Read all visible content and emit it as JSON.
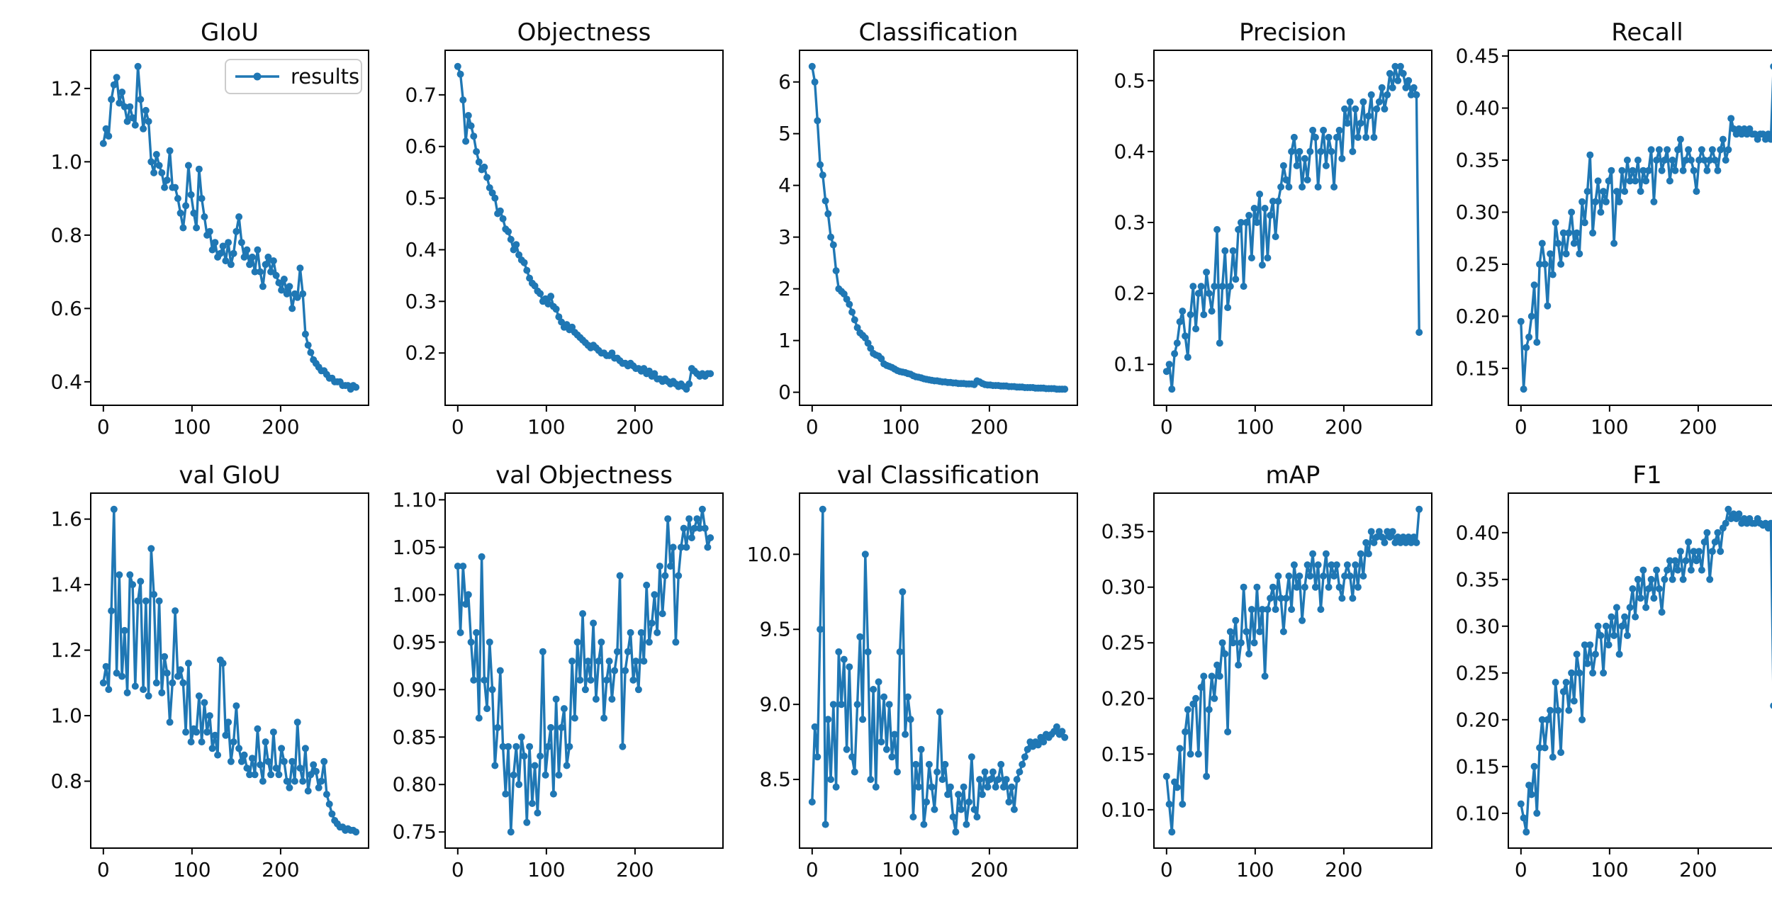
{
  "figure": {
    "kind": "matplotlib-training-results",
    "line_color": "#1f77b4",
    "spine_color": "#000000",
    "text_color": "#0d0d0d",
    "background": "#ffffff",
    "legend": {
      "label": "results",
      "shown_on_chart": "GIoU"
    }
  },
  "chart_data": [
    {
      "type": "line",
      "title": "GIoU",
      "legend": true,
      "series_name": "results",
      "x_start": 0,
      "x_step": 3,
      "x_ticks": [
        0,
        100,
        200
      ],
      "y_ticks": [
        0.4,
        0.6,
        0.8,
        1.0,
        1.2
      ],
      "y_tick_labels": [
        "0.4",
        "0.6",
        "0.8",
        "1.0",
        "1.2"
      ],
      "values": [
        1.05,
        1.09,
        1.07,
        1.17,
        1.21,
        1.23,
        1.16,
        1.19,
        1.15,
        1.11,
        1.15,
        1.12,
        1.1,
        1.26,
        1.17,
        1.09,
        1.14,
        1.11,
        1.0,
        0.97,
        1.02,
        0.99,
        0.97,
        0.93,
        0.95,
        1.03,
        0.93,
        0.93,
        0.9,
        0.86,
        0.82,
        0.88,
        0.99,
        0.91,
        0.86,
        0.82,
        0.98,
        0.9,
        0.85,
        0.8,
        0.81,
        0.76,
        0.78,
        0.74,
        0.75,
        0.77,
        0.73,
        0.78,
        0.72,
        0.75,
        0.81,
        0.85,
        0.78,
        0.74,
        0.76,
        0.72,
        0.74,
        0.7,
        0.76,
        0.7,
        0.66,
        0.72,
        0.74,
        0.7,
        0.73,
        0.69,
        0.67,
        0.65,
        0.68,
        0.64,
        0.66,
        0.6,
        0.64,
        0.63,
        0.71,
        0.64,
        0.53,
        0.5,
        0.48,
        0.46,
        0.45,
        0.44,
        0.43,
        0.43,
        0.42,
        0.41,
        0.41,
        0.4,
        0.4,
        0.4,
        0.39,
        0.39,
        0.39,
        0.38,
        0.39,
        0.385
      ]
    },
    {
      "type": "line",
      "title": "Objectness",
      "legend": false,
      "series_name": "results",
      "x_start": 0,
      "x_step": 3,
      "x_ticks": [
        0,
        100,
        200
      ],
      "y_ticks": [
        0.2,
        0.3,
        0.4,
        0.5,
        0.6,
        0.7
      ],
      "y_tick_labels": [
        "0.2",
        "0.3",
        "0.4",
        "0.5",
        "0.6",
        "0.7"
      ],
      "values": [
        0.755,
        0.74,
        0.69,
        0.61,
        0.66,
        0.64,
        0.62,
        0.59,
        0.57,
        0.555,
        0.56,
        0.54,
        0.52,
        0.51,
        0.5,
        0.47,
        0.475,
        0.46,
        0.44,
        0.435,
        0.42,
        0.4,
        0.41,
        0.39,
        0.38,
        0.375,
        0.36,
        0.345,
        0.335,
        0.33,
        0.32,
        0.315,
        0.3,
        0.305,
        0.295,
        0.31,
        0.29,
        0.285,
        0.27,
        0.26,
        0.25,
        0.255,
        0.245,
        0.25,
        0.24,
        0.235,
        0.23,
        0.225,
        0.22,
        0.215,
        0.21,
        0.215,
        0.21,
        0.205,
        0.2,
        0.2,
        0.195,
        0.195,
        0.2,
        0.19,
        0.19,
        0.185,
        0.18,
        0.18,
        0.175,
        0.18,
        0.175,
        0.17,
        0.17,
        0.165,
        0.17,
        0.16,
        0.165,
        0.155,
        0.16,
        0.15,
        0.15,
        0.145,
        0.15,
        0.145,
        0.14,
        0.145,
        0.14,
        0.135,
        0.14,
        0.135,
        0.13,
        0.14,
        0.17,
        0.165,
        0.16,
        0.155,
        0.16,
        0.155,
        0.16,
        0.16
      ]
    },
    {
      "type": "line",
      "title": "Classification",
      "legend": false,
      "series_name": "results",
      "x_start": 0,
      "x_step": 3,
      "x_ticks": [
        0,
        100,
        200
      ],
      "y_ticks": [
        0,
        1,
        2,
        3,
        4,
        5,
        6
      ],
      "y_tick_labels": [
        "0",
        "1",
        "2",
        "3",
        "4",
        "5",
        "6"
      ],
      "values": [
        6.3,
        6.0,
        5.25,
        4.4,
        4.2,
        3.7,
        3.45,
        3.0,
        2.85,
        2.35,
        2.0,
        1.95,
        1.9,
        1.8,
        1.7,
        1.55,
        1.4,
        1.25,
        1.15,
        1.1,
        1.05,
        0.95,
        0.85,
        0.75,
        0.72,
        0.7,
        0.65,
        0.55,
        0.52,
        0.5,
        0.48,
        0.45,
        0.42,
        0.4,
        0.39,
        0.38,
        0.36,
        0.35,
        0.32,
        0.3,
        0.29,
        0.28,
        0.26,
        0.25,
        0.24,
        0.23,
        0.22,
        0.22,
        0.21,
        0.2,
        0.2,
        0.19,
        0.19,
        0.18,
        0.18,
        0.17,
        0.17,
        0.17,
        0.16,
        0.16,
        0.16,
        0.15,
        0.22,
        0.2,
        0.17,
        0.15,
        0.14,
        0.14,
        0.13,
        0.13,
        0.13,
        0.12,
        0.12,
        0.12,
        0.11,
        0.11,
        0.11,
        0.1,
        0.1,
        0.1,
        0.09,
        0.09,
        0.09,
        0.09,
        0.08,
        0.08,
        0.08,
        0.08,
        0.07,
        0.07,
        0.07,
        0.07,
        0.06,
        0.06,
        0.06,
        0.06
      ]
    },
    {
      "type": "line",
      "title": "Precision",
      "legend": false,
      "series_name": "results",
      "x_start": 0,
      "x_step": 3,
      "x_ticks": [
        0,
        100,
        200
      ],
      "y_ticks": [
        0.1,
        0.2,
        0.3,
        0.4,
        0.5
      ],
      "y_tick_labels": [
        "0.1",
        "0.2",
        "0.3",
        "0.4",
        "0.5"
      ],
      "values": [
        0.09,
        0.1,
        0.065,
        0.115,
        0.13,
        0.16,
        0.175,
        0.14,
        0.11,
        0.17,
        0.21,
        0.15,
        0.2,
        0.21,
        0.17,
        0.23,
        0.2,
        0.175,
        0.21,
        0.29,
        0.13,
        0.21,
        0.26,
        0.18,
        0.21,
        0.26,
        0.22,
        0.29,
        0.3,
        0.21,
        0.3,
        0.31,
        0.25,
        0.32,
        0.3,
        0.34,
        0.24,
        0.32,
        0.25,
        0.31,
        0.33,
        0.28,
        0.33,
        0.35,
        0.38,
        0.36,
        0.35,
        0.4,
        0.42,
        0.38,
        0.4,
        0.35,
        0.39,
        0.36,
        0.4,
        0.43,
        0.42,
        0.35,
        0.4,
        0.43,
        0.38,
        0.42,
        0.4,
        0.35,
        0.42,
        0.43,
        0.39,
        0.46,
        0.44,
        0.47,
        0.4,
        0.46,
        0.42,
        0.44,
        0.47,
        0.42,
        0.45,
        0.48,
        0.42,
        0.46,
        0.47,
        0.49,
        0.46,
        0.48,
        0.51,
        0.49,
        0.52,
        0.5,
        0.52,
        0.51,
        0.49,
        0.5,
        0.48,
        0.49,
        0.48,
        0.145
      ]
    },
    {
      "type": "line",
      "title": "Recall",
      "legend": false,
      "series_name": "results",
      "x_start": 0,
      "x_step": 3,
      "x_ticks": [
        0,
        100,
        200
      ],
      "y_ticks": [
        0.15,
        0.2,
        0.25,
        0.3,
        0.35,
        0.4,
        0.45
      ],
      "y_tick_labels": [
        "0.15",
        "0.20",
        "0.25",
        "0.30",
        "0.35",
        "0.40",
        "0.45"
      ],
      "values": [
        0.195,
        0.13,
        0.17,
        0.18,
        0.2,
        0.23,
        0.175,
        0.25,
        0.27,
        0.25,
        0.21,
        0.26,
        0.24,
        0.29,
        0.27,
        0.25,
        0.28,
        0.26,
        0.28,
        0.3,
        0.27,
        0.28,
        0.26,
        0.31,
        0.29,
        0.32,
        0.355,
        0.28,
        0.31,
        0.33,
        0.3,
        0.32,
        0.31,
        0.33,
        0.34,
        0.27,
        0.32,
        0.31,
        0.34,
        0.32,
        0.35,
        0.33,
        0.34,
        0.33,
        0.35,
        0.32,
        0.34,
        0.33,
        0.34,
        0.36,
        0.31,
        0.35,
        0.36,
        0.34,
        0.35,
        0.36,
        0.33,
        0.35,
        0.34,
        0.36,
        0.37,
        0.34,
        0.35,
        0.36,
        0.35,
        0.34,
        0.32,
        0.35,
        0.36,
        0.35,
        0.34,
        0.35,
        0.36,
        0.35,
        0.34,
        0.36,
        0.37,
        0.35,
        0.36,
        0.39,
        0.38,
        0.375,
        0.38,
        0.375,
        0.38,
        0.375,
        0.38,
        0.375,
        0.375,
        0.37,
        0.375,
        0.375,
        0.37,
        0.375,
        0.37,
        0.44
      ]
    },
    {
      "type": "line",
      "title": "val GIoU",
      "legend": false,
      "series_name": "results",
      "x_start": 0,
      "x_step": 3,
      "x_ticks": [
        0,
        100,
        200
      ],
      "y_ticks": [
        0.8,
        1.0,
        1.2,
        1.4,
        1.6
      ],
      "y_tick_labels": [
        "0.8",
        "1.0",
        "1.2",
        "1.4",
        "1.6"
      ],
      "values": [
        1.1,
        1.15,
        1.08,
        1.32,
        1.63,
        1.13,
        1.43,
        1.12,
        1.26,
        1.07,
        1.43,
        1.4,
        1.09,
        1.35,
        1.41,
        1.08,
        1.35,
        1.06,
        1.51,
        1.37,
        1.1,
        1.35,
        1.07,
        1.18,
        1.13,
        0.98,
        1.1,
        1.32,
        1.12,
        1.14,
        1.1,
        0.95,
        1.16,
        0.92,
        0.96,
        0.95,
        1.06,
        0.92,
        1.04,
        0.95,
        1.0,
        0.9,
        0.94,
        0.88,
        1.17,
        1.16,
        0.94,
        0.98,
        0.86,
        0.92,
        1.03,
        0.9,
        0.86,
        0.88,
        0.84,
        0.82,
        0.87,
        0.82,
        0.96,
        0.85,
        0.8,
        0.92,
        0.86,
        0.82,
        0.95,
        0.84,
        0.82,
        0.9,
        0.86,
        0.8,
        0.78,
        0.86,
        0.8,
        0.98,
        0.84,
        0.8,
        0.9,
        0.77,
        0.82,
        0.85,
        0.83,
        0.78,
        0.8,
        0.86,
        0.76,
        0.73,
        0.7,
        0.68,
        0.67,
        0.66,
        0.66,
        0.65,
        0.655,
        0.65,
        0.65,
        0.645
      ]
    },
    {
      "type": "line",
      "title": "val Objectness",
      "legend": false,
      "series_name": "results",
      "x_start": 0,
      "x_step": 3,
      "x_ticks": [
        0,
        100,
        200
      ],
      "y_ticks": [
        0.75,
        0.8,
        0.85,
        0.9,
        0.95,
        1.0,
        1.05,
        1.1
      ],
      "y_tick_labels": [
        "0.75",
        "0.80",
        "0.85",
        "0.90",
        "0.95",
        "1.00",
        "1.05",
        "1.10"
      ],
      "values": [
        1.03,
        0.96,
        1.03,
        0.99,
        1.0,
        0.95,
        0.91,
        0.96,
        0.87,
        1.04,
        0.91,
        0.88,
        0.95,
        0.9,
        0.82,
        0.86,
        0.92,
        0.84,
        0.79,
        0.84,
        0.75,
        0.81,
        0.84,
        0.8,
        0.85,
        0.83,
        0.76,
        0.84,
        0.78,
        0.82,
        0.77,
        0.83,
        0.94,
        0.81,
        0.84,
        0.86,
        0.79,
        0.89,
        0.81,
        0.86,
        0.88,
        0.82,
        0.84,
        0.93,
        0.87,
        0.95,
        0.91,
        0.98,
        0.9,
        0.93,
        0.91,
        0.97,
        0.89,
        0.93,
        0.95,
        0.87,
        0.91,
        0.93,
        0.89,
        0.92,
        0.94,
        1.02,
        0.84,
        0.92,
        0.94,
        0.96,
        0.91,
        0.93,
        0.9,
        0.96,
        0.93,
        1.01,
        0.95,
        0.97,
        1.0,
        0.96,
        1.03,
        0.98,
        1.02,
        1.08,
        1.03,
        1.05,
        0.95,
        1.02,
        1.05,
        1.07,
        1.05,
        1.08,
        1.06,
        1.07,
        1.08,
        1.07,
        1.09,
        1.07,
        1.05,
        1.06
      ]
    },
    {
      "type": "line",
      "title": "val Classification",
      "legend": false,
      "series_name": "results",
      "x_start": 0,
      "x_step": 3,
      "x_ticks": [
        0,
        100,
        200
      ],
      "y_ticks": [
        8.5,
        9.0,
        9.5,
        10.0
      ],
      "y_tick_labels": [
        "8.5",
        "9.0",
        "9.5",
        "10.0"
      ],
      "values": [
        8.35,
        8.85,
        8.65,
        9.5,
        10.3,
        8.2,
        8.9,
        8.5,
        9.0,
        8.45,
        9.35,
        9.0,
        9.3,
        8.7,
        9.25,
        8.65,
        8.55,
        9.0,
        9.45,
        8.9,
        10.0,
        9.35,
        8.5,
        9.1,
        8.45,
        9.15,
        8.75,
        9.05,
        8.7,
        9.0,
        8.65,
        8.8,
        8.55,
        9.35,
        9.75,
        8.8,
        9.05,
        8.9,
        8.25,
        8.6,
        8.45,
        8.7,
        8.2,
        8.35,
        8.6,
        8.45,
        8.3,
        8.55,
        8.95,
        8.5,
        8.6,
        8.4,
        8.45,
        8.25,
        8.15,
        8.4,
        8.3,
        8.45,
        8.2,
        8.35,
        8.65,
        8.3,
        8.25,
        8.5,
        8.4,
        8.55,
        8.45,
        8.5,
        8.55,
        8.45,
        8.5,
        8.6,
        8.45,
        8.5,
        8.35,
        8.45,
        8.3,
        8.5,
        8.55,
        8.6,
        8.65,
        8.7,
        8.75,
        8.72,
        8.75,
        8.73,
        8.78,
        8.75,
        8.8,
        8.78,
        8.8,
        8.82,
        8.85,
        8.8,
        8.82,
        8.78
      ]
    },
    {
      "type": "line",
      "title": "mAP",
      "legend": false,
      "series_name": "results",
      "x_start": 0,
      "x_step": 3,
      "x_ticks": [
        0,
        100,
        200
      ],
      "y_ticks": [
        0.1,
        0.15,
        0.2,
        0.25,
        0.3,
        0.35
      ],
      "y_tick_labels": [
        "0.10",
        "0.15",
        "0.20",
        "0.25",
        "0.30",
        "0.35"
      ],
      "values": [
        0.13,
        0.105,
        0.08,
        0.125,
        0.12,
        0.155,
        0.105,
        0.17,
        0.19,
        0.15,
        0.195,
        0.2,
        0.15,
        0.21,
        0.22,
        0.13,
        0.19,
        0.22,
        0.2,
        0.23,
        0.22,
        0.25,
        0.24,
        0.17,
        0.26,
        0.25,
        0.27,
        0.23,
        0.25,
        0.3,
        0.26,
        0.24,
        0.28,
        0.25,
        0.3,
        0.26,
        0.28,
        0.22,
        0.28,
        0.29,
        0.3,
        0.28,
        0.31,
        0.29,
        0.26,
        0.29,
        0.31,
        0.28,
        0.32,
        0.3,
        0.31,
        0.27,
        0.3,
        0.32,
        0.31,
        0.33,
        0.3,
        0.32,
        0.28,
        0.31,
        0.33,
        0.3,
        0.32,
        0.31,
        0.32,
        0.3,
        0.29,
        0.31,
        0.32,
        0.31,
        0.29,
        0.32,
        0.3,
        0.33,
        0.31,
        0.34,
        0.33,
        0.35,
        0.34,
        0.345,
        0.35,
        0.345,
        0.34,
        0.35,
        0.345,
        0.35,
        0.34,
        0.345,
        0.34,
        0.345,
        0.34,
        0.345,
        0.34,
        0.345,
        0.34,
        0.37
      ]
    },
    {
      "type": "line",
      "title": "F1",
      "legend": false,
      "series_name": "results",
      "x_start": 0,
      "x_step": 3,
      "x_ticks": [
        0,
        100,
        200
      ],
      "y_ticks": [
        0.1,
        0.15,
        0.2,
        0.25,
        0.3,
        0.35,
        0.4
      ],
      "y_tick_labels": [
        "0.10",
        "0.15",
        "0.20",
        "0.25",
        "0.30",
        "0.35",
        "0.40"
      ],
      "values": [
        0.11,
        0.095,
        0.08,
        0.13,
        0.12,
        0.15,
        0.1,
        0.17,
        0.2,
        0.17,
        0.2,
        0.21,
        0.16,
        0.24,
        0.21,
        0.165,
        0.23,
        0.24,
        0.21,
        0.25,
        0.22,
        0.27,
        0.25,
        0.2,
        0.28,
        0.26,
        0.28,
        0.25,
        0.27,
        0.3,
        0.29,
        0.25,
        0.3,
        0.28,
        0.31,
        0.29,
        0.32,
        0.27,
        0.3,
        0.31,
        0.29,
        0.32,
        0.34,
        0.31,
        0.35,
        0.33,
        0.36,
        0.32,
        0.34,
        0.35,
        0.33,
        0.36,
        0.34,
        0.315,
        0.35,
        0.36,
        0.37,
        0.35,
        0.37,
        0.36,
        0.38,
        0.35,
        0.37,
        0.39,
        0.36,
        0.38,
        0.37,
        0.38,
        0.36,
        0.39,
        0.4,
        0.35,
        0.38,
        0.39,
        0.4,
        0.38,
        0.405,
        0.41,
        0.425,
        0.415,
        0.42,
        0.415,
        0.42,
        0.41,
        0.415,
        0.41,
        0.415,
        0.41,
        0.41,
        0.415,
        0.41,
        0.408,
        0.41,
        0.405,
        0.41,
        0.215
      ]
    }
  ]
}
